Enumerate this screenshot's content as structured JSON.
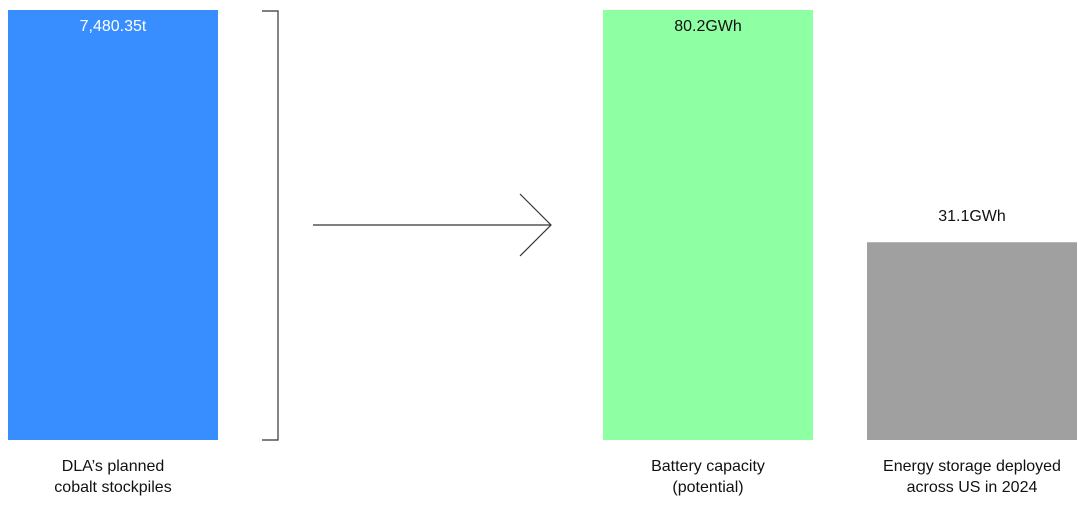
{
  "chart_data": {
    "type": "bar",
    "bars": [
      {
        "id": "cobalt",
        "category": "DLA’s planned\ncobalt stockpiles",
        "value_label": "7,480.35t",
        "value": 7480.35,
        "unit": "t",
        "color": "#388EFF",
        "value_color": "#ffffff",
        "value_inside": true,
        "relative_height": 1.0
      },
      {
        "id": "battery",
        "category": "Battery capacity\n(potential)",
        "value_label": "80.2GWh",
        "value": 80.2,
        "unit": "GWh",
        "color": "#8FFFA3",
        "value_color": "#111111",
        "value_inside": true,
        "relative_height": 1.0
      },
      {
        "id": "storage",
        "category": "Energy storage deployed\nacross US in 2024",
        "value_label": "31.1GWh",
        "value": 31.1,
        "unit": "GWh",
        "color": "#A0A0A0",
        "value_color": "#111111",
        "value_inside": false,
        "relative_height": 0.4599
      }
    ],
    "connector": {
      "bracket": true,
      "arrow": true
    }
  }
}
